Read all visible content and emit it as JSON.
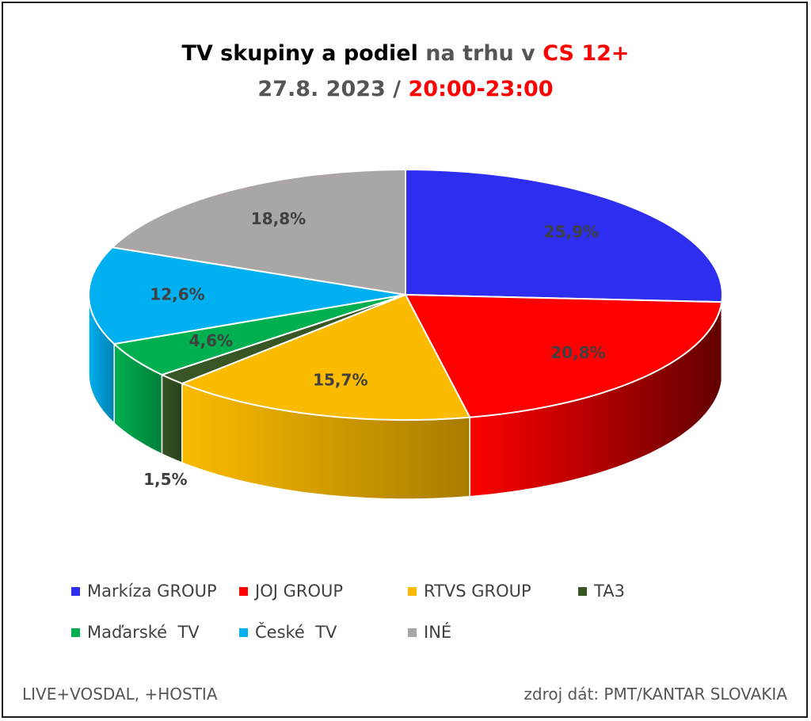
{
  "title": {
    "line1_black": "TV skupiny a podiel",
    "line1_gray": " na trhu v ",
    "line1_red": "CS 12+",
    "line2_gray": "27.8. 2023 / ",
    "line2_red": "20:00-23:00"
  },
  "chart_data": {
    "type": "pie",
    "title": "TV skupiny a podiel na trhu v CS 12+ 27.8. 2023 / 20:00-23:00",
    "categories": [
      "Markíza GROUP",
      "JOJ GROUP",
      "RTVS GROUP",
      "TA3",
      "Maďarské  TV",
      "České  TV",
      "INÉ"
    ],
    "values": [
      25.9,
      20.8,
      15.7,
      1.5,
      4.6,
      12.6,
      18.8
    ],
    "labels": [
      "25,9%",
      "20,8%",
      "15,7%",
      "1,5%",
      "4,6%",
      "12,6%",
      "18,8%"
    ],
    "colors": [
      "#2e2ef0",
      "#ff0000",
      "#fabb00",
      "#375623",
      "#00b050",
      "#00b0f0",
      "#aba6a6"
    ],
    "side_colors": [
      "#1a1a8a",
      "#620000",
      "#a87c00",
      "#26401a",
      "#00803a",
      "#0080b0",
      "#7a7676"
    ],
    "legend_placement": "bottom"
  },
  "footer": {
    "left": "LIVE+VOSDAL, +HOSTIA",
    "right": "zdroj dát: PMT/KANTAR SLOVAKIA"
  }
}
